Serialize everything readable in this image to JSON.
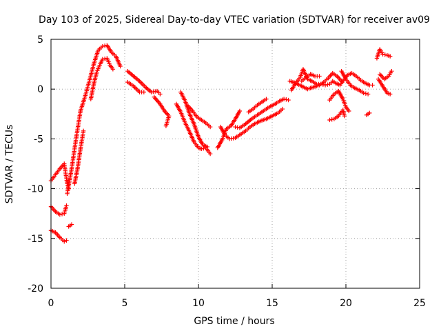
{
  "chart_data": {
    "type": "scatter",
    "title": "Day 103 of 2025, Sidereal Day-to-day VTEC variation (SDTVAR) for receiver av09",
    "xlabel": "GPS time / hours",
    "ylabel": "SDTVAR / TECUs",
    "xlim": [
      0,
      25
    ],
    "ylim": [
      -20,
      5
    ],
    "xticks": [
      0,
      5,
      10,
      15,
      20,
      25
    ],
    "yticks": [
      -20,
      -15,
      -10,
      -5,
      0,
      5
    ],
    "grid": true,
    "marker": "+",
    "color": "#ff0000",
    "series": [
      {
        "name": "SDTVAR",
        "segments": [
          [
            [
              0.0,
              -9.2
            ],
            [
              0.3,
              -8.6
            ],
            [
              0.6,
              -8.0
            ],
            [
              0.9,
              -7.5
            ],
            [
              1.0,
              -8.5
            ],
            [
              1.1,
              -9.5
            ],
            [
              1.2,
              -10.0
            ]
          ],
          [
            [
              0.0,
              -11.8
            ],
            [
              0.3,
              -12.3
            ],
            [
              0.6,
              -12.6
            ],
            [
              0.9,
              -12.5
            ],
            [
              1.05,
              -11.7
            ]
          ],
          [
            [
              0.0,
              -14.2
            ],
            [
              0.3,
              -14.4
            ],
            [
              0.6,
              -14.9
            ],
            [
              0.9,
              -15.3
            ],
            [
              1.05,
              -15.2
            ]
          ],
          [
            [
              1.2,
              -13.8
            ],
            [
              1.4,
              -13.6
            ]
          ],
          [
            [
              1.1,
              -10.5
            ],
            [
              1.4,
              -8.0
            ],
            [
              1.7,
              -5.0
            ],
            [
              2.0,
              -2.2
            ],
            [
              2.3,
              -0.8
            ],
            [
              2.6,
              0.8
            ],
            [
              2.9,
              2.5
            ],
            [
              3.2,
              3.9
            ],
            [
              3.5,
              4.3
            ],
            [
              3.8,
              4.4
            ],
            [
              4.1,
              3.7
            ],
            [
              4.4,
              3.3
            ],
            [
              4.7,
              2.3
            ]
          ],
          [
            [
              1.6,
              -9.5
            ],
            [
              1.8,
              -8.0
            ],
            [
              2.0,
              -6.0
            ],
            [
              2.2,
              -4.2
            ]
          ],
          [
            [
              2.7,
              -1.0
            ],
            [
              2.9,
              0.5
            ],
            [
              3.1,
              1.7
            ],
            [
              3.3,
              2.4
            ],
            [
              3.5,
              3.0
            ],
            [
              3.8,
              3.1
            ],
            [
              4.0,
              2.4
            ],
            [
              4.2,
              2.0
            ]
          ],
          [
            [
              5.2,
              1.8
            ],
            [
              5.6,
              1.3
            ],
            [
              6.0,
              0.8
            ],
            [
              6.4,
              0.2
            ],
            [
              6.8,
              -0.3
            ],
            [
              7.2,
              -0.2
            ],
            [
              7.4,
              -0.5
            ]
          ],
          [
            [
              5.2,
              0.7
            ],
            [
              5.6,
              0.3
            ],
            [
              6.0,
              -0.3
            ],
            [
              6.3,
              -0.3
            ]
          ],
          [
            [
              7.0,
              -0.8
            ],
            [
              7.4,
              -1.5
            ],
            [
              7.7,
              -2.2
            ],
            [
              8.0,
              -2.7
            ],
            [
              7.8,
              -3.7
            ]
          ],
          [
            [
              8.5,
              -1.5
            ],
            [
              8.8,
              -2.3
            ],
            [
              9.1,
              -3.4
            ],
            [
              9.4,
              -4.3
            ],
            [
              9.7,
              -5.3
            ],
            [
              10.0,
              -5.9
            ],
            [
              10.2,
              -6.0
            ],
            [
              10.5,
              -5.9
            ],
            [
              10.8,
              -6.5
            ]
          ],
          [
            [
              8.8,
              -0.3
            ],
            [
              9.1,
              -1.2
            ],
            [
              9.4,
              -2.5
            ],
            [
              9.7,
              -3.5
            ],
            [
              10.0,
              -4.8
            ],
            [
              10.3,
              -5.6
            ],
            [
              10.6,
              -5.8
            ]
          ],
          [
            [
              9.3,
              -1.7
            ],
            [
              9.6,
              -2.2
            ],
            [
              9.9,
              -2.8
            ],
            [
              10.2,
              -3.1
            ],
            [
              10.5,
              -3.4
            ],
            [
              10.8,
              -3.8
            ]
          ],
          [
            [
              11.3,
              -5.9
            ],
            [
              11.6,
              -5.1
            ],
            [
              11.9,
              -4.0
            ],
            [
              12.2,
              -3.7
            ],
            [
              12.5,
              -3.0
            ],
            [
              12.8,
              -2.2
            ]
          ],
          [
            [
              11.5,
              -3.8
            ],
            [
              11.8,
              -4.6
            ],
            [
              12.1,
              -5.0
            ],
            [
              12.5,
              -4.9
            ],
            [
              12.8,
              -4.6
            ],
            [
              13.2,
              -4.2
            ],
            [
              13.5,
              -3.8
            ],
            [
              13.8,
              -3.5
            ],
            [
              14.2,
              -3.2
            ],
            [
              14.6,
              -3.0
            ],
            [
              15.0,
              -2.7
            ],
            [
              15.4,
              -2.4
            ],
            [
              15.7,
              -2.0
            ]
          ],
          [
            [
              12.5,
              -3.8
            ],
            [
              12.8,
              -3.9
            ],
            [
              13.2,
              -3.5
            ],
            [
              13.6,
              -3.0
            ],
            [
              14.0,
              -2.6
            ],
            [
              14.4,
              -2.2
            ],
            [
              14.8,
              -1.8
            ],
            [
              15.2,
              -1.5
            ],
            [
              15.5,
              -1.2
            ],
            [
              15.8,
              -1.0
            ],
            [
              16.1,
              -1.1
            ]
          ],
          [
            [
              13.4,
              -2.3
            ],
            [
              13.7,
              -2.0
            ],
            [
              14.0,
              -1.6
            ],
            [
              14.3,
              -1.3
            ],
            [
              14.6,
              -1.0
            ]
          ],
          [
            [
              16.3,
              -0.1
            ],
            [
              16.6,
              0.6
            ],
            [
              16.9,
              1.2
            ],
            [
              17.1,
              2.0
            ],
            [
              17.4,
              1.0
            ],
            [
              17.7,
              0.8
            ],
            [
              18.0,
              0.5
            ],
            [
              18.3,
              0.5
            ],
            [
              18.6,
              0.4
            ],
            [
              18.9,
              0.5
            ],
            [
              19.1,
              0.8
            ],
            [
              19.3,
              0.6
            ],
            [
              19.6,
              0.4
            ],
            [
              19.9,
              1.0
            ],
            [
              20.1,
              1.4
            ],
            [
              20.4,
              1.6
            ],
            [
              20.7,
              1.3
            ],
            [
              21.0,
              0.9
            ],
            [
              21.3,
              0.6
            ],
            [
              21.6,
              0.4
            ],
            [
              21.8,
              0.4
            ]
          ],
          [
            [
              16.2,
              0.8
            ],
            [
              16.6,
              0.6
            ],
            [
              17.0,
              0.3
            ],
            [
              17.4,
              0.0
            ],
            [
              17.8,
              0.2
            ],
            [
              18.2,
              0.4
            ],
            [
              18.5,
              0.7
            ],
            [
              18.8,
              1.1
            ],
            [
              19.1,
              1.6
            ],
            [
              19.4,
              1.3
            ],
            [
              19.7,
              0.8
            ]
          ],
          [
            [
              17.0,
              0.8
            ],
            [
              17.3,
              1.2
            ],
            [
              17.6,
              1.5
            ],
            [
              17.9,
              1.3
            ],
            [
              18.2,
              1.3
            ]
          ],
          [
            [
              18.9,
              -1.1
            ],
            [
              19.2,
              -0.5
            ],
            [
              19.5,
              -0.2
            ],
            [
              19.8,
              -1.0
            ],
            [
              20.0,
              -1.8
            ],
            [
              20.2,
              -2.2
            ]
          ],
          [
            [
              18.9,
              -3.1
            ],
            [
              19.2,
              -3.0
            ],
            [
              19.5,
              -2.7
            ],
            [
              19.8,
              -2.1
            ],
            [
              19.9,
              -2.7
            ]
          ],
          [
            [
              19.7,
              1.8
            ],
            [
              20.0,
              1.0
            ],
            [
              20.3,
              0.4
            ],
            [
              20.6,
              0.1
            ],
            [
              20.9,
              -0.1
            ],
            [
              21.2,
              -0.4
            ],
            [
              21.5,
              -0.5
            ]
          ],
          [
            [
              21.4,
              -2.6
            ],
            [
              21.6,
              -2.4
            ]
          ],
          [
            [
              22.1,
              3.1
            ],
            [
              22.3,
              4.0
            ],
            [
              22.5,
              3.5
            ],
            [
              22.8,
              3.4
            ],
            [
              23.0,
              3.3
            ]
          ],
          [
            [
              22.2,
              1.0
            ],
            [
              22.5,
              0.3
            ],
            [
              22.8,
              -0.4
            ],
            [
              23.0,
              -0.5
            ]
          ],
          [
            [
              22.3,
              1.5
            ],
            [
              22.6,
              1.0
            ],
            [
              22.9,
              1.3
            ],
            [
              23.1,
              1.8
            ]
          ]
        ]
      }
    ]
  }
}
